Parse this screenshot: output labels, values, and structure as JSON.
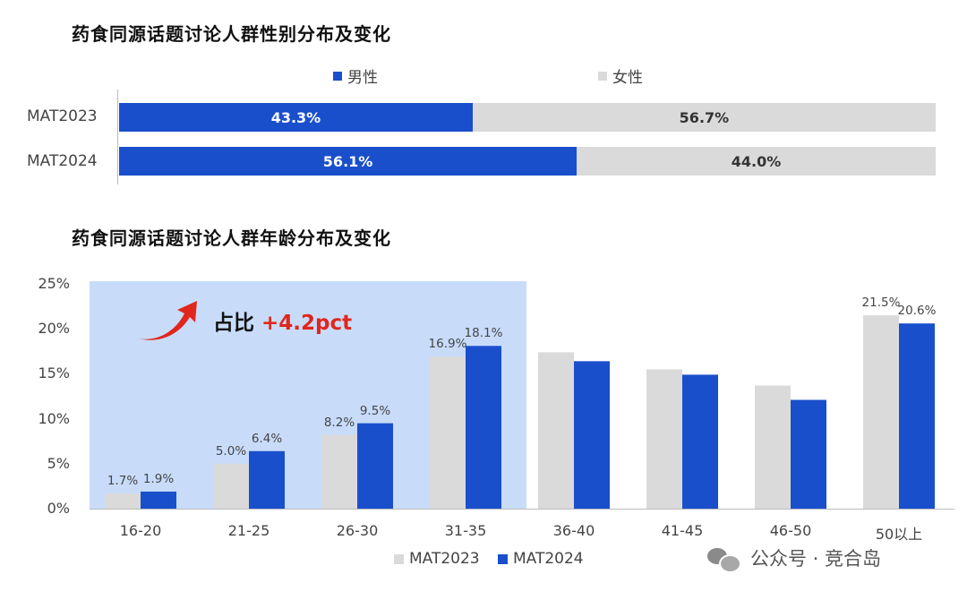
{
  "chart_data": [
    {
      "type": "bar",
      "orientation": "horizontal-stacked-100",
      "title": "药食同源话题讨论人群性别分布及变化",
      "categories": [
        "MAT2023",
        "MAT2024"
      ],
      "series": [
        {
          "name": "男性",
          "values": [
            43.3,
            56.1
          ],
          "labels": [
            "43.3%",
            "56.1%"
          ],
          "color": "#1a4fcc"
        },
        {
          "name": "女性",
          "values": [
            56.7,
            44.0
          ],
          "labels": [
            "56.7%",
            "44.0%"
          ],
          "color": "#dadada"
        }
      ],
      "legend": "top"
    },
    {
      "type": "bar",
      "title": "药食同源话题讨论人群年龄分布及变化",
      "categories": [
        "16-20",
        "21-25",
        "26-30",
        "31-35",
        "36-40",
        "41-45",
        "46-50",
        "50以上"
      ],
      "series": [
        {
          "name": "MAT2023",
          "values": [
            1.7,
            5.0,
            8.2,
            16.9,
            17.4,
            15.5,
            13.7,
            21.5
          ],
          "labels": [
            "1.7%",
            "5.0%",
            "8.2%",
            "16.9%",
            "",
            "",
            "",
            "21.5%"
          ],
          "color": "#dadada"
        },
        {
          "name": "MAT2024",
          "values": [
            1.9,
            6.4,
            9.5,
            18.1,
            16.4,
            14.9,
            12.1,
            20.6
          ],
          "labels": [
            "1.9%",
            "6.4%",
            "9.5%",
            "18.1%",
            "",
            "",
            "",
            "20.6%"
          ],
          "color": "#1a4fcc"
        }
      ],
      "yticks": [
        "0%",
        "5%",
        "10%",
        "15%",
        "20%",
        "25%"
      ],
      "ylim": [
        0,
        25
      ],
      "legend": "bottom",
      "annotation": {
        "label": "占比",
        "value": "+4.2pct",
        "highlight_categories": [
          "16-20",
          "21-25",
          "26-30",
          "31-35"
        ]
      }
    }
  ],
  "watermark": "公众号 · 竞合岛"
}
